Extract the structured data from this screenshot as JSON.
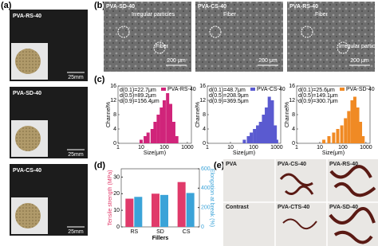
{
  "panel_labels": [
    "(a)",
    "(b)",
    "(c)",
    "(d)",
    "(e)"
  ],
  "photos": [
    {
      "label": "PVA-RS-40",
      "scale": "25mm"
    },
    {
      "label": "PVA-SD-40",
      "scale": "25mm"
    },
    {
      "label": "PVA-CS-40",
      "scale": "25mm"
    }
  ],
  "sem": [
    {
      "title": "PVA-SD-40",
      "notes": [
        "Irregular particles",
        "Fiber"
      ],
      "scale": "200 μm"
    },
    {
      "title": "PVA-CS-40",
      "notes": [
        "Fiber"
      ],
      "scale": "200 μm"
    },
    {
      "title": "PVA-RS-40",
      "notes": [
        "Fiber",
        "Irregular particles"
      ],
      "scale": "200 μm"
    }
  ],
  "chart_data": [
    {
      "type": "histogram",
      "legend": "PVA-RS-40",
      "color": "#d0247a",
      "stats": [
        "d(0.1)=22.7μm",
        "d(0.5)=89.2μm",
        "d(0.9)=156.4μm"
      ],
      "x": [
        10,
        15,
        20,
        30,
        40,
        55,
        75,
        100,
        140,
        190,
        260,
        350
      ],
      "values": [
        1,
        2,
        3,
        4,
        6,
        8,
        10,
        12,
        14,
        11,
        6,
        2
      ],
      "xlim": [
        1,
        1500
      ],
      "xticks": [
        1,
        10,
        100,
        1000
      ],
      "ylim": [
        0,
        16
      ],
      "yticks": [
        0,
        4,
        8,
        12,
        16
      ],
      "log_x": true,
      "xlabel": "Size(μm)",
      "ylabel": "Channel%"
    },
    {
      "type": "histogram",
      "legend": "PVA-CS-40",
      "color": "#5a5ad0",
      "stats": [
        "d(0.1)=48.7μm",
        "d(0.5)=208.9μm",
        "d(0.9)=369.5μm"
      ],
      "x": [
        40,
        60,
        80,
        110,
        150,
        200,
        270,
        360,
        480,
        650,
        870,
        1000
      ],
      "values": [
        1,
        2,
        3,
        4,
        5,
        6,
        8,
        10,
        13,
        12,
        5,
        1
      ],
      "xlim": [
        1,
        1500
      ],
      "xticks": [
        1,
        10,
        100,
        1000
      ],
      "ylim": [
        0,
        16
      ],
      "yticks": [
        0,
        4,
        8,
        12,
        16
      ],
      "log_x": true,
      "xlabel": "Size(μm)",
      "ylabel": "Channel%"
    },
    {
      "type": "histogram",
      "legend": "PVA-SD-40",
      "color": "#f08a24",
      "stats": [
        "d(0.1)=25.6μm",
        "d(0.5)=149.1μm",
        "d(0.9)=300.7μm"
      ],
      "x": [
        15,
        25,
        40,
        60,
        90,
        130,
        180,
        250,
        330,
        440,
        580,
        750
      ],
      "values": [
        1,
        2,
        3,
        4,
        5,
        7,
        9,
        12,
        13,
        10,
        6,
        2
      ],
      "xlim": [
        1,
        1500
      ],
      "xticks": [
        1,
        10,
        100,
        1000
      ],
      "ylim": [
        0,
        16
      ],
      "yticks": [
        0,
        4,
        8,
        12,
        16
      ],
      "log_x": true,
      "xlabel": "Size(μm)",
      "ylabel": "Channel%"
    },
    {
      "type": "grouped-bar",
      "categories": [
        "RS",
        "SD",
        "CS"
      ],
      "series": [
        {
          "color": "#e03a6a",
          "values": [
            17,
            20,
            27
          ]
        },
        {
          "color": "#3ba3d8",
          "values": [
            310,
            330,
            350
          ],
          "axis": "y2"
        }
      ],
      "ylim": [
        0,
        35
      ],
      "yticks": [
        0,
        10,
        20,
        30
      ],
      "y2lim": [
        0,
        600
      ],
      "y2ticks": [
        0,
        200,
        400,
        600
      ],
      "ylabel": "Tensile strength (MPa)",
      "y2label": "Elongation at break (%)",
      "xlabel": "Fillers"
    }
  ],
  "panel_e": [
    "PVA",
    "PVA-CS-40",
    "PVA-RS-40",
    "Contrast",
    "PVA-CTS-40",
    "PVA-SD-40"
  ]
}
